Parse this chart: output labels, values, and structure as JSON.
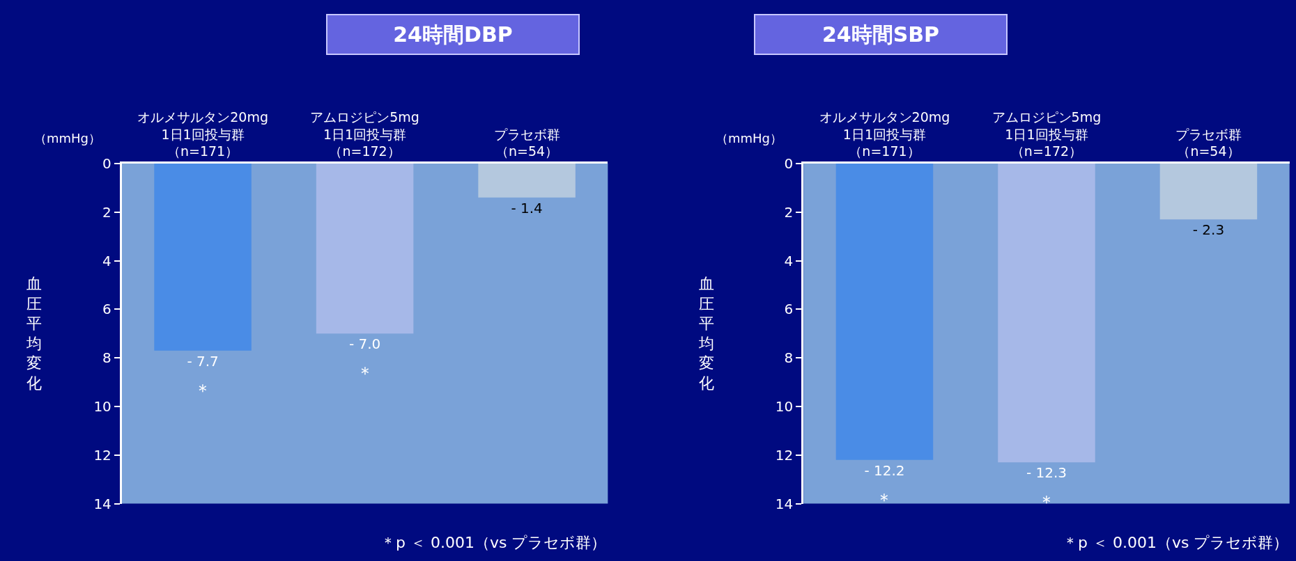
{
  "chart_data": [
    {
      "type": "bar",
      "title": "24時間DBP",
      "ylabel": "血圧平均変化",
      "categories": [
        "オルメサルタン20mg1日1回投与群（n=171）",
        "アムロジピン5mg1日1回投与群（n=172）",
        "プラセボ群（n=54）"
      ],
      "values": [
        -7.7,
        -7.0,
        -1.4
      ],
      "colors": [
        "#4a8ce6",
        "#a6b8e8",
        "#b4c8de"
      ],
      "value_labels": [
        "- 7.7",
        "- 7.0",
        "- 1.4"
      ],
      "ylim": [
        -14,
        0
      ],
      "yticks": [
        {
          "value": 0,
          "label": "0"
        },
        {
          "value": -2,
          "label": "2"
        },
        {
          "value": -4,
          "label": "4"
        },
        {
          "value": -6,
          "label": "6"
        },
        {
          "value": -8,
          "label": "8"
        },
        {
          "value": -10,
          "label": "10"
        },
        {
          "value": -12,
          "label": "12"
        },
        {
          "value": -14,
          "label": "14"
        }
      ],
      "annotations": [
        "（mmHg）",
        "＊",
        "＊",
        "＊p ＜ 0.001（vs プラセボ群）"
      ]
    },
    {
      "type": "bar",
      "title": "24時間SBP",
      "ylabel": "血圧平均変化",
      "categories": [
        "オルメサルタン20mg1日1回投与群（n=171）",
        "アムロジピン5mg1日1回投与群（n=172）",
        "プラセボ群（n=54）"
      ],
      "values": [
        -12.2,
        -12.3,
        -2.3
      ],
      "colors": [
        "#4a8ce6",
        "#a6b8e8",
        "#b4c8de"
      ],
      "value_labels": [
        "- 12.2",
        "- 12.3",
        "- 2.3"
      ],
      "ylim": [
        -14,
        0
      ],
      "yticks": [
        {
          "value": 0,
          "label": "0"
        },
        {
          "value": -2,
          "label": "2"
        },
        {
          "value": -4,
          "label": "4"
        },
        {
          "value": -6,
          "label": "6"
        },
        {
          "value": -8,
          "label": "8"
        },
        {
          "value": -10,
          "label": "10"
        },
        {
          "value": -12,
          "label": "12"
        },
        {
          "value": -14,
          "label": "14"
        }
      ],
      "annotations": [
        "（mmHg）",
        "＊",
        "＊",
        "＊p ＜ 0.001（vs プラセボ群）"
      ]
    }
  ]
}
